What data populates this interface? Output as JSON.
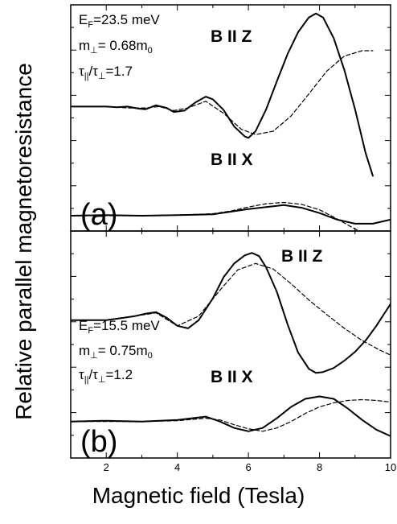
{
  "ylabel": "Relative parallel magnetoresistance",
  "xlabel": "Magnetic field (Tesla)",
  "chart_data": [
    {
      "type": "line",
      "panel_label": "(a)",
      "params": [
        "E_F=23.5 meV",
        "m_⊥= 0.68m_0",
        "τ_||/τ_⊥=1.7"
      ],
      "xlim": [
        1,
        10
      ],
      "grid": false,
      "series": [
        {
          "name": "B II Z",
          "style": "solid",
          "x": [
            1,
            1.5,
            2,
            2.3,
            2.6,
            2.9,
            3.1,
            3.4,
            3.7,
            3.9,
            4.2,
            4.5,
            4.8,
            5.0,
            5.3,
            5.6,
            5.9,
            6.0,
            6.2,
            6.5,
            6.8,
            7.1,
            7.4,
            7.7,
            7.9,
            8.1,
            8.4,
            8.7,
            9.0,
            9.3,
            9.5
          ],
          "y": [
            0.52,
            0.52,
            0.52,
            0.51,
            0.52,
            0.49,
            0.48,
            0.54,
            0.5,
            0.44,
            0.46,
            0.58,
            0.67,
            0.63,
            0.47,
            0.22,
            0.07,
            0.05,
            0.15,
            0.48,
            0.9,
            1.31,
            1.64,
            1.86,
            1.92,
            1.86,
            1.55,
            1.07,
            0.48,
            -0.18,
            -0.52
          ]
        },
        {
          "name": "B II Z",
          "style": "dashed",
          "x": [
            1,
            2,
            2.6,
            3.1,
            3.5,
            3.9,
            4.3,
            4.8,
            5.3,
            5.8,
            6.2,
            6.7,
            7.2,
            7.7,
            8.2,
            8.7,
            9.2,
            9.5
          ],
          "y": [
            0.52,
            0.52,
            0.5,
            0.5,
            0.52,
            0.46,
            0.5,
            0.6,
            0.42,
            0.18,
            0.1,
            0.15,
            0.38,
            0.71,
            1.05,
            1.28,
            1.36,
            1.36
          ]
        },
        {
          "name": "B II X",
          "style": "solid",
          "x": [
            1,
            2,
            3,
            4,
            5,
            5.5,
            6,
            6.5,
            7,
            7.5,
            8,
            8.5,
            9,
            9.5,
            10
          ],
          "y": [
            -1.12,
            -1.11,
            -1.12,
            -1.11,
            -1.1,
            -1.06,
            -1.02,
            -0.99,
            -0.96,
            -1.0,
            -1.08,
            -1.18,
            -1.24,
            -1.24,
            -1.18
          ]
        },
        {
          "name": "B II X",
          "style": "dashed",
          "x": [
            1,
            2,
            3,
            4,
            5,
            5.5,
            6,
            6.5,
            7,
            7.5,
            8,
            8.5,
            9,
            9.5,
            10
          ],
          "y": [
            -1.12,
            -1.12,
            -1.12,
            -1.11,
            -1.09,
            -1.05,
            -0.99,
            -0.94,
            -0.92,
            -0.95,
            -1.03,
            -1.17,
            -1.32,
            -1.44,
            -1.54
          ]
        }
      ]
    },
    {
      "type": "line",
      "panel_label": "(b)",
      "params": [
        "E_F=15.5 meV",
        "m_⊥= 0.75m_0",
        "τ_||/τ_⊥=1.2"
      ],
      "xlim": [
        1,
        10
      ],
      "xticks": [
        2,
        4,
        6,
        8,
        10
      ],
      "grid": false,
      "series": [
        {
          "name": "B II Z",
          "style": "solid",
          "x": [
            1,
            1.5,
            2,
            2.5,
            2.8,
            3.1,
            3.4,
            3.7,
            4.0,
            4.3,
            4.6,
            5.0,
            5.3,
            5.6,
            5.9,
            6.1,
            6.3,
            6.5,
            6.8,
            7.1,
            7.4,
            7.7,
            7.9,
            8.1,
            8.4,
            8.7,
            9.0,
            9.3,
            9.6,
            10
          ],
          "y": [
            0.35,
            0.35,
            0.35,
            0.38,
            0.4,
            0.43,
            0.45,
            0.38,
            0.28,
            0.25,
            0.35,
            0.62,
            0.88,
            1.05,
            1.15,
            1.18,
            1.14,
            1.0,
            0.7,
            0.3,
            -0.05,
            -0.25,
            -0.3,
            -0.29,
            -0.24,
            -0.15,
            -0.04,
            0.1,
            0.28,
            0.55
          ]
        },
        {
          "name": "B II Z",
          "style": "dashed",
          "x": [
            1,
            2,
            2.8,
            3.4,
            4.0,
            4.6,
            5.2,
            5.7,
            6.2,
            6.7,
            7.2,
            7.7,
            8.2,
            8.7,
            9.2,
            9.7,
            10
          ],
          "y": [
            0.35,
            0.35,
            0.4,
            0.44,
            0.28,
            0.4,
            0.72,
            0.97,
            1.05,
            0.98,
            0.8,
            0.6,
            0.42,
            0.25,
            0.1,
            -0.02,
            -0.08
          ]
        },
        {
          "name": "B II X",
          "style": "solid",
          "x": [
            1,
            2,
            3,
            4,
            4.8,
            5.2,
            5.6,
            6.0,
            6.4,
            6.8,
            7.2,
            7.6,
            8.0,
            8.4,
            8.8,
            9.2,
            9.6,
            10
          ],
          "y": [
            -0.9,
            -0.89,
            -0.9,
            -0.88,
            -0.84,
            -0.9,
            -0.98,
            -1.02,
            -0.98,
            -0.86,
            -0.72,
            -0.62,
            -0.59,
            -0.62,
            -0.74,
            -0.88,
            -1.0,
            -1.08
          ]
        },
        {
          "name": "B II X",
          "style": "dashed",
          "x": [
            1,
            2,
            3,
            4,
            4.8,
            5.2,
            5.6,
            6.0,
            6.4,
            6.8,
            7.2,
            7.6,
            8.0,
            8.4,
            8.8,
            9.2,
            9.6,
            10
          ],
          "y": [
            -0.9,
            -0.9,
            -0.9,
            -0.89,
            -0.86,
            -0.88,
            -0.94,
            -0.99,
            -1.02,
            -0.98,
            -0.9,
            -0.8,
            -0.72,
            -0.67,
            -0.64,
            -0.63,
            -0.64,
            -0.66
          ]
        }
      ]
    }
  ]
}
